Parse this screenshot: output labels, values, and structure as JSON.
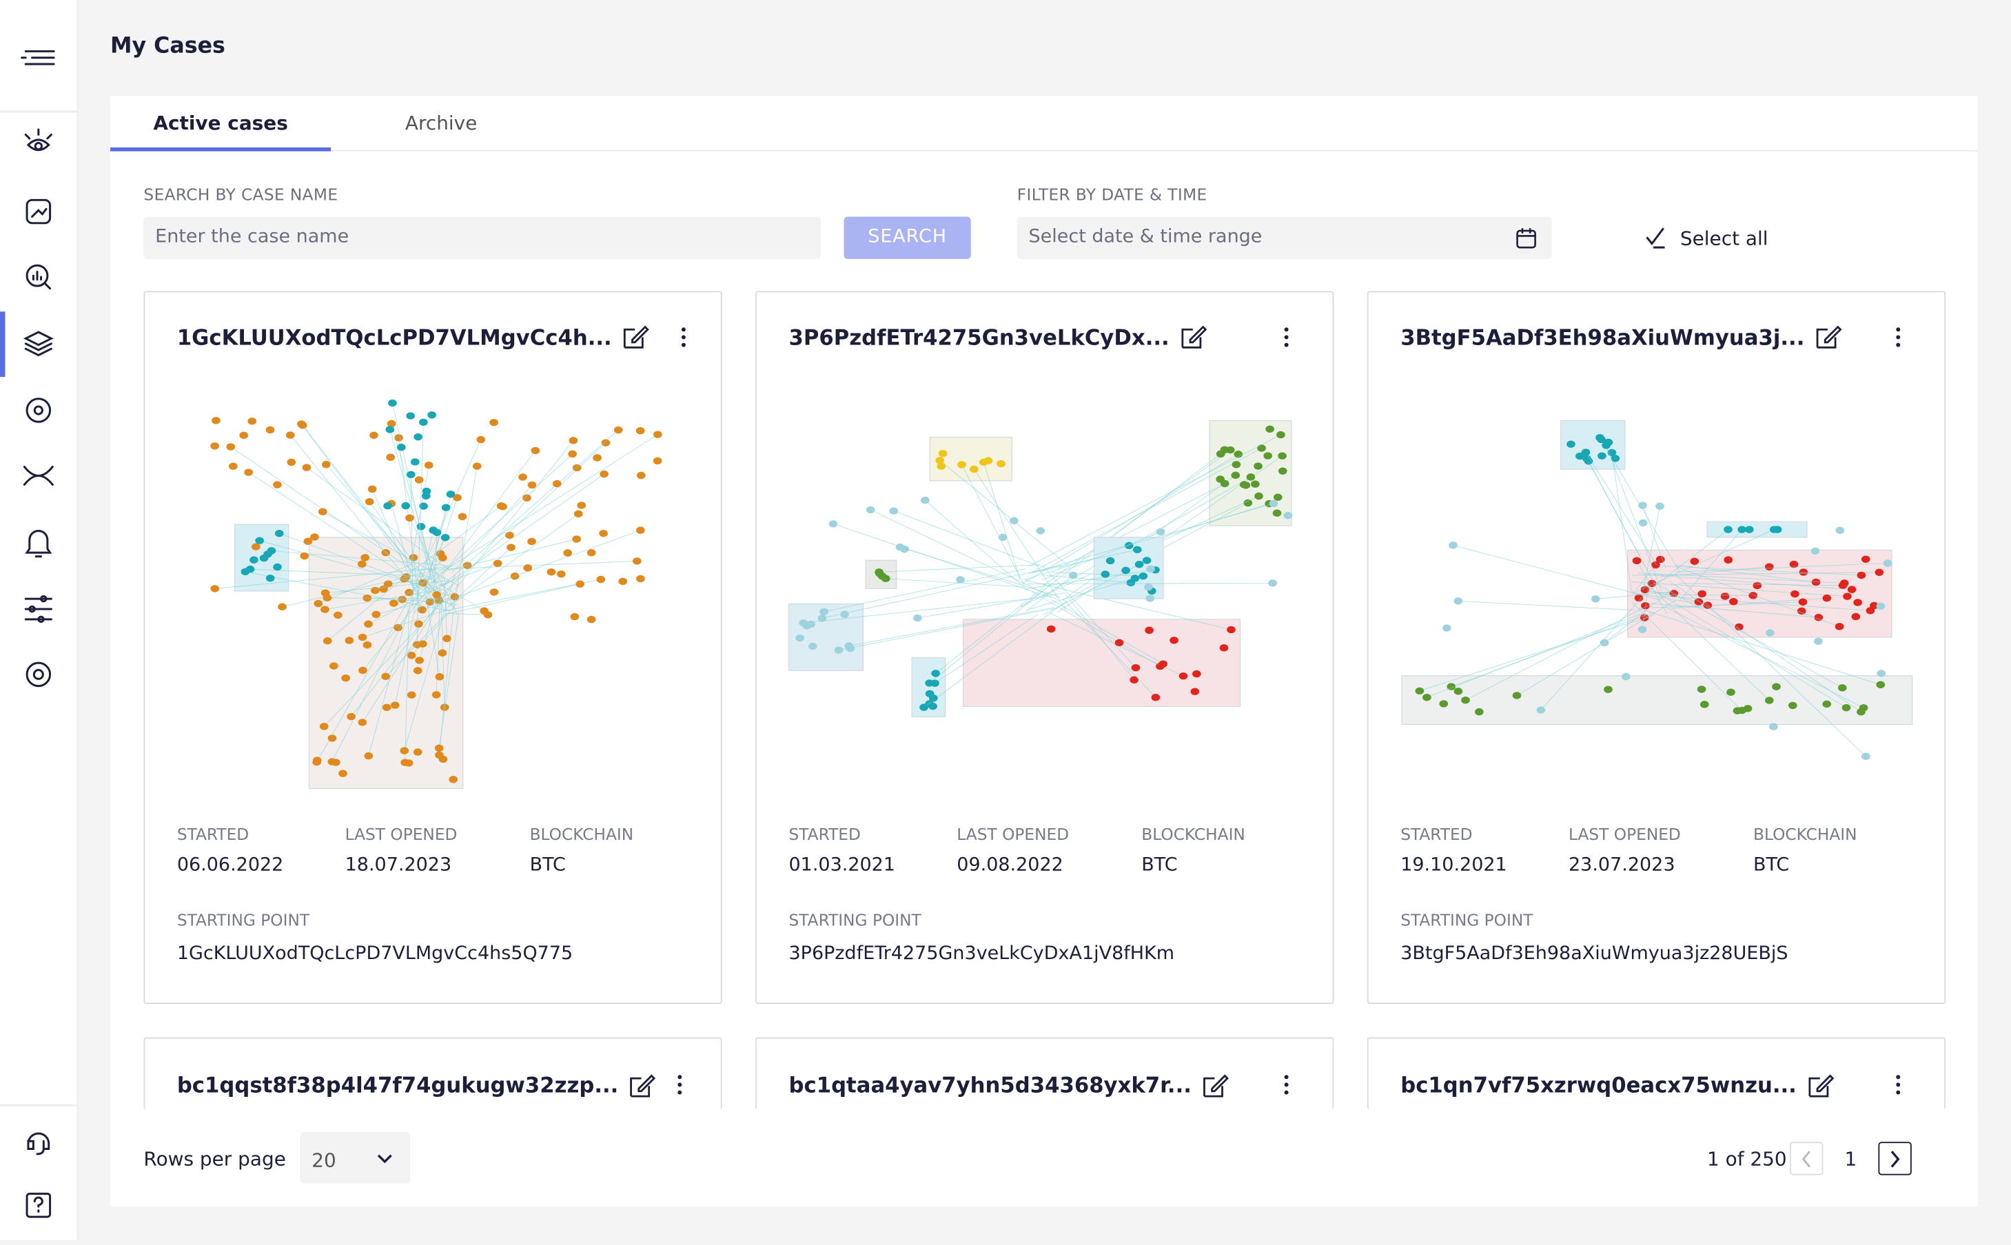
{
  "header": {
    "title": "My Cases"
  },
  "tabs": [
    "Active cases",
    "Archive"
  ],
  "search": {
    "label": "SEARCH BY CASE NAME",
    "placeholder": "Enter the case name",
    "button": "SEARCH"
  },
  "filter": {
    "label": "FILTER BY DATE & TIME",
    "placeholder": "Select date & time range"
  },
  "select_all": "Select all",
  "field_labels": {
    "started": "STARTED",
    "last_opened": "LAST OPENED",
    "blockchain": "BLOCKCHAIN",
    "starting_point": "STARTING POINT"
  },
  "cards": [
    {
      "title": "1GcKLUUXodTQcLcPD7VLMgvCc4h...",
      "started": "06.06.2022",
      "last_opened": "18.07.2023",
      "blockchain": "BTC",
      "starting_point": "1GcKLUUXodTQcLcPD7VLMgvCc4hs5Q775"
    },
    {
      "title": "3P6PzdfETr4275Gn3veLkCyDx...",
      "started": "01.03.2021",
      "last_opened": "09.08.2022",
      "blockchain": "BTC",
      "starting_point": "3P6PzdfETr4275Gn3veLkCyDxA1jV8fHKm"
    },
    {
      "title": "3BtgF5AaDf3Eh98aXiuWmyua3j...",
      "started": "19.10.2021",
      "last_opened": "23.07.2023",
      "blockchain": "BTC",
      "starting_point": "3BtgF5AaDf3Eh98aXiuWmyua3jz28UEBjS"
    }
  ],
  "more_cards": [
    "bc1qqst8f38p4l47f74gukugw32zzp...",
    "bc1qtaa4yav7yhn5d34368yxk7r...",
    "bc1qn7vf75xzrwq0eacx75wnzu..."
  ],
  "pagination": {
    "rows_label": "Rows per page",
    "rows_value": "20",
    "page_info": "1 of 250",
    "page": "1"
  }
}
